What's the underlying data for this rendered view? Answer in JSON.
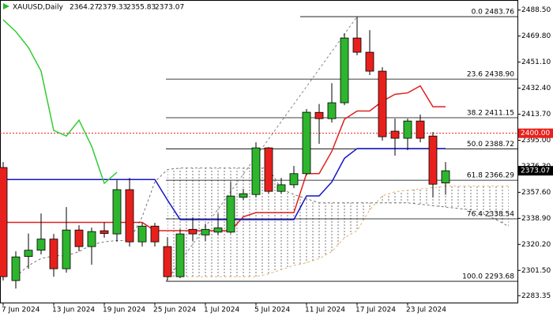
{
  "chart_data": {
    "type": "candlestick",
    "title": "XAUUSD,Daily",
    "categories": [
      "7 Jun 2024",
      null,
      null,
      null,
      "13 Jun 2024",
      null,
      null,
      null,
      "19 Jun 2024",
      null,
      null,
      null,
      "25 Jun 2024",
      null,
      null,
      null,
      "1 Jul 2024",
      null,
      null,
      null,
      "5 Jul 2024",
      null,
      null,
      null,
      "11 Jul 2024",
      null,
      null,
      null,
      "17 Jul 2024",
      null,
      null,
      null,
      "23 Jul 2024",
      null,
      null,
      null,
      null,
      null,
      null,
      null,
      null
    ],
    "open": [
      2375.4,
      2294.2,
      2311.5,
      2316.0,
      2324.0,
      2302.7,
      2330.5,
      2318.6,
      2330.0,
      2327.7,
      2359.5,
      2322.0,
      2333.3,
      2318.6,
      2297.0,
      2331.0,
      2327.0,
      2329.0,
      2329.0,
      2354.0,
      2356.0,
      2389.5,
      2358.3,
      2363.0,
      2371.0,
      2415.0,
      2410.5,
      2421.9,
      2468.4,
      2458.2,
      2444.6,
      2401.5,
      2396.4,
      2408.8,
      2398.0,
      2364.27,
      null,
      null,
      null,
      null,
      null
    ],
    "high": [
      2379.3,
      2315.2,
      2328.0,
      2342.4,
      2327.7,
      2347.0,
      2333.9,
      2332.2,
      2336.0,
      2366.3,
      2368.0,
      2335.6,
      2335.6,
      2325.4,
      2331.0,
      2339.6,
      2335.0,
      2342.4,
      2365.1,
      2360.0,
      2393.5,
      2390.1,
      2368.0,
      2376.5,
      2417.4,
      2421.0,
      2436.0,
      2471.8,
      2483.76,
      2474.1,
      2447.4,
      2410.5,
      2410.5,
      2413.4,
      2400.9,
      2379.33,
      null,
      null,
      null,
      null,
      null
    ],
    "low": [
      2294.2,
      2288.5,
      2302.7,
      2313.0,
      2297.0,
      2299.9,
      2315.2,
      2305.6,
      2325.0,
      2322.0,
      2318.6,
      2318.6,
      2318.6,
      2294.2,
      2295.9,
      2322.6,
      2322.6,
      2326.6,
      2328.0,
      2352.0,
      2353.8,
      2356.6,
      2356.6,
      2360.6,
      2369.7,
      2392.4,
      2407.7,
      2420.2,
      2456.0,
      2441.8,
      2394.7,
      2383.9,
      2387.8,
      2393.5,
      2353.8,
      2355.83,
      null,
      null,
      null,
      null,
      null
    ],
    "close": [
      2297.0,
      2311.2,
      2316.0,
      2324.0,
      2302.7,
      2330.5,
      2318.6,
      2329.4,
      2328.0,
      2359.5,
      2322.0,
      2333.3,
      2322.0,
      2297.0,
      2327.7,
      2327.7,
      2331.0,
      2332.0,
      2354.9,
      2356.6,
      2389.5,
      2358.3,
      2363.0,
      2371.0,
      2415.1,
      2410.5,
      2421.9,
      2468.4,
      2458.2,
      2444.6,
      2397.5,
      2396.4,
      2408.8,
      2396.4,
      2363.4,
      2373.07,
      null,
      null,
      null,
      null,
      null
    ],
    "up_color": "#2db52d",
    "down_color": "#e8201c",
    "lines": [
      {
        "color": "#e02020",
        "dash": false,
        "values": [
          2336,
          2336,
          2336,
          2336,
          2336,
          2336,
          2336,
          2336,
          2336,
          2336,
          2336,
          2336,
          2330,
          2330,
          2330,
          2330,
          2330,
          2330,
          2330,
          2340,
          2343,
          2343,
          2343,
          2343,
          2371,
          2371,
          2387,
          2410,
          2416,
          2416,
          2423,
          2428,
          2429,
          2434,
          2419,
          2419,
          null,
          null,
          null,
          null,
          null
        ]
      },
      {
        "color": "#1414c8",
        "dash": false,
        "values": [
          2366.8,
          2366.8,
          2366.8,
          2366.8,
          2366.8,
          2366.8,
          2366.8,
          2366.8,
          2366.8,
          2366.8,
          2366.8,
          2366.8,
          2366.8,
          2352,
          2338,
          2338,
          2338,
          2338,
          2338,
          2338,
          2338,
          2338,
          2338,
          2338,
          2355,
          2355,
          2365,
          2382,
          2389,
          2389,
          2389,
          2389,
          2389,
          2389,
          2389,
          2389,
          null,
          null,
          null,
          null,
          null
        ]
      },
      {
        "color": "#33cc33",
        "dash": false,
        "values": [
          2481.5,
          2473,
          2461.6,
          2444.6,
          2402,
          2398,
          2409.4,
          2390.7,
          2364,
          2372,
          null,
          null,
          null,
          null,
          null,
          null,
          null,
          null,
          null,
          null,
          null,
          null,
          null,
          null,
          null,
          null,
          null,
          null,
          null,
          null,
          null,
          null,
          null,
          null,
          null,
          null,
          null,
          null,
          null,
          null,
          null
        ]
      },
      {
        "color": "#555555",
        "dash": true,
        "values": [
          null,
          2297,
          2305,
          2310,
          2312,
          2312,
          2315,
          2320,
          2322,
          2323,
          2323,
          2340,
          2365,
          2374,
          2375,
          2375,
          2375,
          2375,
          2375,
          2375,
          2375,
          2375,
          2360,
          2356,
          2353,
          2350,
          2350,
          2350,
          2350,
          2350,
          2350,
          2350,
          2350,
          2349,
          2348,
          2347,
          2346,
          2345,
          2342,
          2338,
          2333
        ]
      },
      {
        "color": "#e0a050",
        "dash": true,
        "values": [
          null,
          null,
          null,
          null,
          null,
          null,
          null,
          null,
          null,
          null,
          null,
          null,
          null,
          2297,
          2297,
          2297,
          2297,
          2297,
          2297,
          2297,
          2297,
          2299,
          2302,
          2305,
          2307,
          2310,
          2315,
          2325,
          2330,
          2345,
          2355,
          2358,
          2359,
          2360,
          2361,
          2362,
          2362,
          2362,
          2362,
          2362,
          2362
        ]
      }
    ],
    "fibonacci": [
      {
        "value": 2483.76,
        "label": "0.0 2483.76"
      },
      {
        "value": 2438.9,
        "label": "23.6 2438.90"
      },
      {
        "value": 2411.15,
        "label": "38.2 2411.15"
      },
      {
        "value": 2388.72,
        "label": "50.0 2388.72"
      },
      {
        "value": 2366.29,
        "label": "61.8 2366.29"
      },
      {
        "value": 2338.54,
        "label": "76.4 2338.54"
      },
      {
        "value": 2293.68,
        "label": "100.0 2293.68"
      }
    ],
    "price_line": {
      "value": 2400,
      "label": "2400.00",
      "color": "#e8201c"
    },
    "ylim": [
      2278.4,
      2495.7
    ],
    "yticks": [
      {
        "value": 2488.5,
        "label": "2488.50"
      },
      {
        "value": 2469.8,
        "label": "2469.80"
      },
      {
        "value": 2451.1,
        "label": "2451.10"
      },
      {
        "value": 2432.4,
        "label": "2432.40"
      },
      {
        "value": 2413.7,
        "label": "2413.70"
      },
      {
        "value": 2395,
        "label": "2395.00"
      },
      {
        "value": 2376.3,
        "label": "2376.30"
      },
      {
        "value": 2357.6,
        "label": "2357.60"
      },
      {
        "value": 2338.9,
        "label": "2338.90"
      },
      {
        "value": 2320.2,
        "label": "2320.20"
      },
      {
        "value": 2301.5,
        "label": "2301.50"
      },
      2283.35
    ],
    "grid": false
  }
}
